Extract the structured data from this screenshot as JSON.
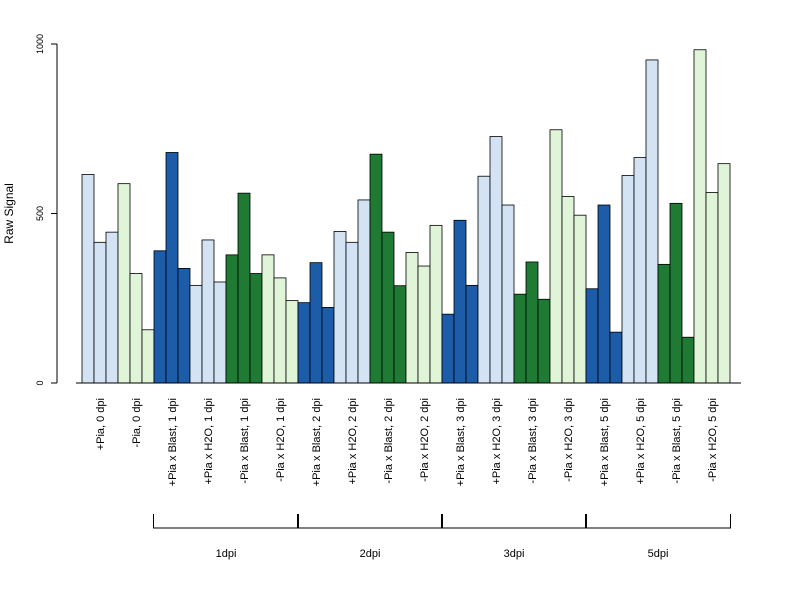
{
  "chart_data": {
    "type": "bar",
    "ylabel": "Raw Signal",
    "ylim": [
      0,
      1000
    ],
    "yticks": [
      "0",
      "500",
      "1000"
    ],
    "grid": false,
    "legend": "none",
    "colors": {
      "light_blue": "#d3e3f3",
      "dark_blue": "#1c5ca8",
      "light_green": "#e0f5d8",
      "dark_green": "#1f7a34"
    },
    "categories": [
      "+Pia, 0 dpi",
      "-Pia, 0 dpi",
      "+Pia x Blast, 1 dpi",
      "+Pia x H2O, 1 dpi",
      "-Pia x Blast, 1 dpi",
      "-Pia x H2O, 1 dpi",
      "+Pia x Blast, 2 dpi",
      "+Pia x H2O, 2 dpi",
      "-Pia x Blast, 2 dpi",
      "-Pia x H2O, 2 dpi",
      "+Pia x Blast, 3 dpi",
      "+Pia x H2O, 3 dpi",
      "-Pia x Blast, 3 dpi",
      "-Pia x H2O, 3 dpi",
      "+Pia x Blast, 5 dpi",
      "+Pia x H2O, 5 dpi",
      "-Pia x Blast, 5 dpi",
      "-Pia x H2O, 5 dpi"
    ],
    "category_colors": [
      "light_blue",
      "light_green",
      "dark_blue",
      "light_blue",
      "dark_green",
      "light_green",
      "dark_blue",
      "light_blue",
      "dark_green",
      "light_green",
      "dark_blue",
      "light_blue",
      "dark_green",
      "light_green",
      "dark_blue",
      "light_blue",
      "dark_green",
      "light_green"
    ],
    "values": [
      [
        615,
        415,
        445
      ],
      [
        588,
        323,
        157
      ],
      [
        390,
        680,
        338
      ],
      [
        288,
        422,
        298
      ],
      [
        378,
        560,
        323
      ],
      [
        378,
        310,
        243
      ],
      [
        237,
        355,
        223
      ],
      [
        447,
        415,
        540
      ],
      [
        675,
        445,
        287
      ],
      [
        385,
        345,
        465
      ],
      [
        203,
        480,
        288
      ],
      [
        610,
        727,
        525
      ],
      [
        262,
        357,
        247
      ],
      [
        747,
        550,
        495
      ],
      [
        278,
        525,
        150
      ],
      [
        612,
        665,
        953
      ],
      [
        350,
        530,
        135
      ],
      [
        983,
        562,
        647
      ]
    ],
    "groups": [
      {
        "label": "1dpi",
        "from": 2,
        "to": 5
      },
      {
        "label": "2dpi",
        "from": 6,
        "to": 9
      },
      {
        "label": "3dpi",
        "from": 10,
        "to": 13
      },
      {
        "label": "5dpi",
        "from": 14,
        "to": 17
      }
    ]
  }
}
